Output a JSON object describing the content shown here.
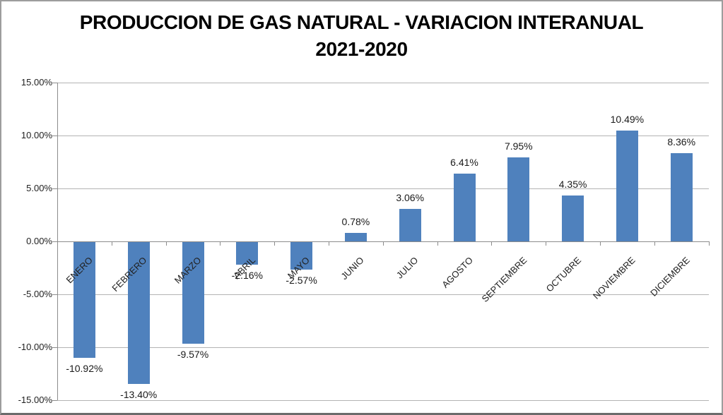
{
  "chart_data": {
    "type": "bar",
    "title_line1": "PRODUCCION DE GAS NATURAL - VARIACION INTERANUAL",
    "title_line2": "2021-2020",
    "categories": [
      "ENERO",
      "FEBRERO",
      "MARZO",
      "ABRIL",
      "MAYO",
      "JUNIO",
      "JULIO",
      "AGOSTO",
      "SEPTIEMBRE",
      "OCTUBRE",
      "NOVIEMBRE",
      "DICIEMBRE"
    ],
    "values": [
      -10.92,
      -13.4,
      -9.57,
      -2.16,
      -2.57,
      0.78,
      3.06,
      6.41,
      7.95,
      4.35,
      10.49,
      8.36
    ],
    "data_labels": [
      "-10.92%",
      "-13.40%",
      "-9.57%",
      "-2.16%",
      "-2.57%",
      "0.78%",
      "3.06%",
      "6.41%",
      "7.95%",
      "4.35%",
      "10.49%",
      "8.36%"
    ],
    "xlabel": "",
    "ylabel": "",
    "ylim": [
      -15,
      15
    ],
    "y_ticks": [
      {
        "value": 15,
        "label": "15.00%"
      },
      {
        "value": 10,
        "label": "10.00%"
      },
      {
        "value": 5,
        "label": "5.00%"
      },
      {
        "value": 0,
        "label": "0.00%"
      },
      {
        "value": -5,
        "label": "-5.00%"
      },
      {
        "value": -10,
        "label": "-10.00%"
      },
      {
        "value": -15,
        "label": "-15.00%"
      }
    ],
    "grid": true,
    "legend": "none",
    "colors": {
      "bar": "#4F81BD",
      "gridline": "#B3B3B3",
      "axis": "#8C8C8C",
      "text": "#212121",
      "title": "#000000"
    }
  }
}
